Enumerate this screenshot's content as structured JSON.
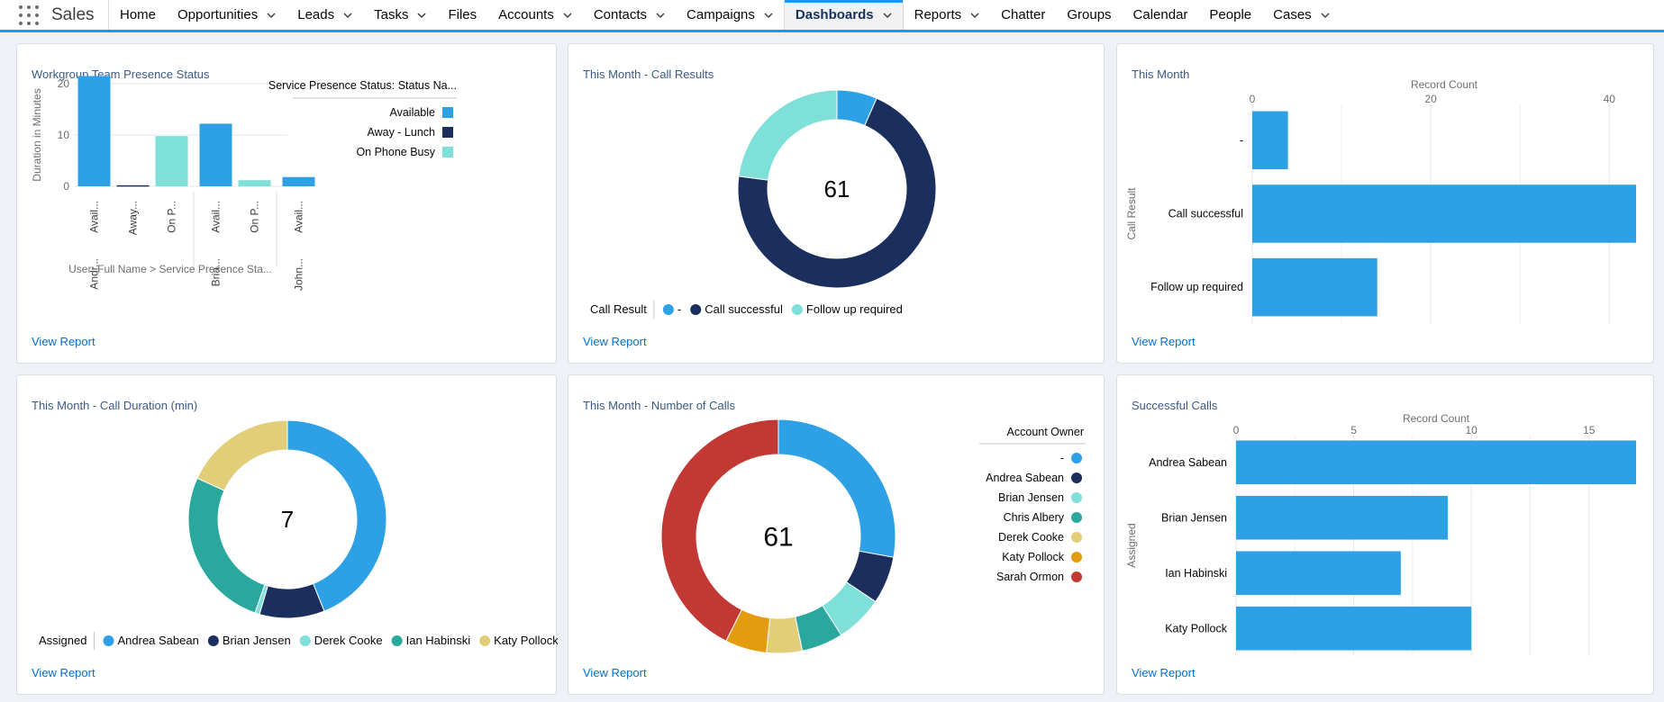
{
  "app": {
    "name": "Sales"
  },
  "nav": {
    "tabs": [
      {
        "label": "Home",
        "dropdown": false
      },
      {
        "label": "Opportunities",
        "dropdown": true
      },
      {
        "label": "Leads",
        "dropdown": true
      },
      {
        "label": "Tasks",
        "dropdown": true
      },
      {
        "label": "Files",
        "dropdown": false
      },
      {
        "label": "Accounts",
        "dropdown": true
      },
      {
        "label": "Contacts",
        "dropdown": true
      },
      {
        "label": "Campaigns",
        "dropdown": true
      },
      {
        "label": "Dashboards",
        "dropdown": true,
        "active": true
      },
      {
        "label": "Reports",
        "dropdown": true
      },
      {
        "label": "Chatter",
        "dropdown": false
      },
      {
        "label": "Groups",
        "dropdown": false
      },
      {
        "label": "Calendar",
        "dropdown": false
      },
      {
        "label": "People",
        "dropdown": false
      },
      {
        "label": "Cases",
        "dropdown": true
      }
    ]
  },
  "colors": {
    "blue": "#2ea1e6",
    "navy": "#1b2f5e",
    "aqua": "#7fdfd9",
    "teal": "#2aa89e",
    "khaki": "#e2cd79",
    "orange": "#e39c0d",
    "red": "#c23934",
    "link": "#0070d2"
  },
  "view_report_label": "View Report",
  "cards": {
    "presence": {
      "title": "Workgroup Team Presence Status"
    },
    "call_results": {
      "title": "This Month - Call Results"
    },
    "this_month": {
      "title": "This Month"
    },
    "call_duration": {
      "title": "This Month - Call Duration (min)"
    },
    "num_calls": {
      "title": "This Month - Number of Calls"
    },
    "successful": {
      "title": "Successful Calls"
    }
  },
  "chart_data": [
    {
      "id": "presence",
      "type": "bar",
      "title": "Workgroup Team Presence Status",
      "ylabel": "Duration in Minutes",
      "xlabel": "User: Full Name > Service Presence Sta...",
      "ylim": [
        0,
        20
      ],
      "yticks": [
        0,
        10,
        20
      ],
      "grid": true,
      "legend_title": "Service Presence Status: Status Na...",
      "legend_position": "right",
      "legend": [
        {
          "label": "Available",
          "color": "#2ea1e6"
        },
        {
          "label": "Away - Lunch",
          "color": "#1b2f5e"
        },
        {
          "label": "On Phone Busy",
          "color": "#7fdfd9"
        }
      ],
      "groups": [
        {
          "label": "Andr...",
          "bars": [
            {
              "label": "Avail...",
              "value": 21.5,
              "color": "#2ea1e6"
            },
            {
              "label": "Away...",
              "value": 0.2,
              "color": "#1b2f5e"
            },
            {
              "label": "On P...",
              "value": 9.8,
              "color": "#7fdfd9"
            }
          ]
        },
        {
          "label": "Bria...",
          "bars": [
            {
              "label": "Avail...",
              "value": 12.2,
              "color": "#2ea1e6"
            },
            {
              "label": "On P...",
              "value": 1.2,
              "color": "#7fdfd9"
            }
          ]
        },
        {
          "label": "John...",
          "bars": [
            {
              "label": "Avail...",
              "value": 1.8,
              "color": "#2ea1e6"
            }
          ]
        }
      ]
    },
    {
      "id": "call_results",
      "type": "pie",
      "center_label": "61",
      "legend_title": "Call Result",
      "legend_position": "bottom",
      "slices": [
        {
          "label": "-",
          "value": 4,
          "color": "#2ea1e6"
        },
        {
          "label": "Call successful",
          "value": 43,
          "color": "#1b2f5e"
        },
        {
          "label": "Follow up required",
          "value": 14,
          "color": "#7fdfd9"
        }
      ]
    },
    {
      "id": "this_month",
      "type": "bar",
      "orientation": "horizontal",
      "xlabel": "Record Count",
      "ylabel": "Call Result",
      "xlim": [
        0,
        43
      ],
      "xticks": [
        0,
        20,
        40
      ],
      "grid": true,
      "categories": [
        "-",
        "Call successful",
        "Follow up required"
      ],
      "values": [
        4,
        43,
        14
      ]
    },
    {
      "id": "call_duration",
      "type": "pie",
      "center_label": "7",
      "legend_title": "Assigned",
      "legend_position": "bottom",
      "slices": [
        {
          "label": "Andrea Sabean",
          "value": 2.9,
          "color": "#2ea1e6"
        },
        {
          "label": "Brian Jensen",
          "value": 0.7,
          "color": "#1b2f5e"
        },
        {
          "label": "Derek Cooke",
          "value": 0.05,
          "color": "#7fdfd9"
        },
        {
          "label": "Ian Habinski",
          "value": 1.75,
          "color": "#2aa89e"
        },
        {
          "label": "Katy Pollock",
          "value": 1.2,
          "color": "#e2cd79"
        }
      ]
    },
    {
      "id": "num_calls",
      "type": "pie",
      "center_label": "61",
      "legend_title": "Account Owner",
      "legend_position": "right",
      "slices": [
        {
          "label": "-",
          "value": 17,
          "color": "#2ea1e6"
        },
        {
          "label": "Andrea Sabean",
          "value": 4,
          "color": "#1b2f5e"
        },
        {
          "label": "Brian Jensen",
          "value": 4,
          "color": "#7fdfd9"
        },
        {
          "label": "Chris Albery",
          "value": 3.5,
          "color": "#2aa89e"
        },
        {
          "label": "Derek Cooke",
          "value": 3,
          "color": "#e2cd79"
        },
        {
          "label": "Katy Pollock",
          "value": 3.5,
          "color": "#e39c0d"
        },
        {
          "label": "Sarah Ormon",
          "value": 26,
          "color": "#c23934"
        }
      ]
    },
    {
      "id": "successful",
      "type": "bar",
      "orientation": "horizontal",
      "xlabel": "Record Count",
      "ylabel": "Assigned",
      "xlim": [
        0,
        17
      ],
      "xticks": [
        0,
        5,
        10,
        15
      ],
      "grid": true,
      "categories": [
        "Andrea Sabean",
        "Brian Jensen",
        "Ian Habinski",
        "Katy Pollock"
      ],
      "values": [
        17,
        9,
        7,
        10
      ]
    }
  ]
}
